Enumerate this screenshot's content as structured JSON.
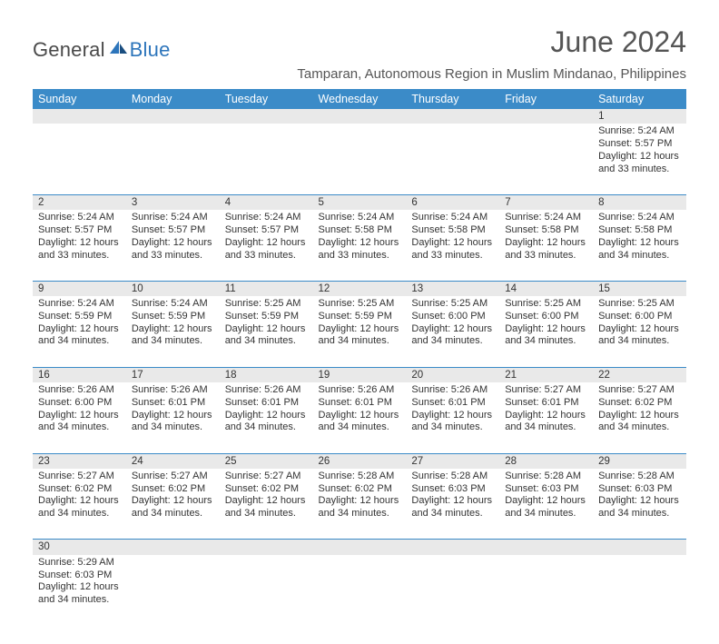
{
  "brand": {
    "part1": "General",
    "part2": "Blue"
  },
  "title": "June 2024",
  "location": "Tamparan, Autonomous Region in Muslim Mindanao, Philippines",
  "colors": {
    "header_bg": "#3b8bc8",
    "header_text": "#ffffff",
    "daynum_bg": "#e9e9e9",
    "row_divider": "#3b8bc8",
    "body_text": "#333333",
    "title_text": "#555555",
    "logo_dark": "#4a4a4a",
    "logo_blue": "#2d75bb"
  },
  "typography": {
    "title_fontsize": 32,
    "location_fontsize": 15,
    "weekday_fontsize": 12.5,
    "cell_fontsize": 11
  },
  "weekdays": [
    "Sunday",
    "Monday",
    "Tuesday",
    "Wednesday",
    "Thursday",
    "Friday",
    "Saturday"
  ],
  "weeks": [
    {
      "nums": [
        "",
        "",
        "",
        "",
        "",
        "",
        "1"
      ],
      "cells": [
        null,
        null,
        null,
        null,
        null,
        null,
        {
          "sunrise": "Sunrise: 5:24 AM",
          "sunset": "Sunset: 5:57 PM",
          "day1": "Daylight: 12 hours",
          "day2": "and 33 minutes."
        }
      ]
    },
    {
      "nums": [
        "2",
        "3",
        "4",
        "5",
        "6",
        "7",
        "8"
      ],
      "cells": [
        {
          "sunrise": "Sunrise: 5:24 AM",
          "sunset": "Sunset: 5:57 PM",
          "day1": "Daylight: 12 hours",
          "day2": "and 33 minutes."
        },
        {
          "sunrise": "Sunrise: 5:24 AM",
          "sunset": "Sunset: 5:57 PM",
          "day1": "Daylight: 12 hours",
          "day2": "and 33 minutes."
        },
        {
          "sunrise": "Sunrise: 5:24 AM",
          "sunset": "Sunset: 5:57 PM",
          "day1": "Daylight: 12 hours",
          "day2": "and 33 minutes."
        },
        {
          "sunrise": "Sunrise: 5:24 AM",
          "sunset": "Sunset: 5:58 PM",
          "day1": "Daylight: 12 hours",
          "day2": "and 33 minutes."
        },
        {
          "sunrise": "Sunrise: 5:24 AM",
          "sunset": "Sunset: 5:58 PM",
          "day1": "Daylight: 12 hours",
          "day2": "and 33 minutes."
        },
        {
          "sunrise": "Sunrise: 5:24 AM",
          "sunset": "Sunset: 5:58 PM",
          "day1": "Daylight: 12 hours",
          "day2": "and 33 minutes."
        },
        {
          "sunrise": "Sunrise: 5:24 AM",
          "sunset": "Sunset: 5:58 PM",
          "day1": "Daylight: 12 hours",
          "day2": "and 34 minutes."
        }
      ]
    },
    {
      "nums": [
        "9",
        "10",
        "11",
        "12",
        "13",
        "14",
        "15"
      ],
      "cells": [
        {
          "sunrise": "Sunrise: 5:24 AM",
          "sunset": "Sunset: 5:59 PM",
          "day1": "Daylight: 12 hours",
          "day2": "and 34 minutes."
        },
        {
          "sunrise": "Sunrise: 5:24 AM",
          "sunset": "Sunset: 5:59 PM",
          "day1": "Daylight: 12 hours",
          "day2": "and 34 minutes."
        },
        {
          "sunrise": "Sunrise: 5:25 AM",
          "sunset": "Sunset: 5:59 PM",
          "day1": "Daylight: 12 hours",
          "day2": "and 34 minutes."
        },
        {
          "sunrise": "Sunrise: 5:25 AM",
          "sunset": "Sunset: 5:59 PM",
          "day1": "Daylight: 12 hours",
          "day2": "and 34 minutes."
        },
        {
          "sunrise": "Sunrise: 5:25 AM",
          "sunset": "Sunset: 6:00 PM",
          "day1": "Daylight: 12 hours",
          "day2": "and 34 minutes."
        },
        {
          "sunrise": "Sunrise: 5:25 AM",
          "sunset": "Sunset: 6:00 PM",
          "day1": "Daylight: 12 hours",
          "day2": "and 34 minutes."
        },
        {
          "sunrise": "Sunrise: 5:25 AM",
          "sunset": "Sunset: 6:00 PM",
          "day1": "Daylight: 12 hours",
          "day2": "and 34 minutes."
        }
      ]
    },
    {
      "nums": [
        "16",
        "17",
        "18",
        "19",
        "20",
        "21",
        "22"
      ],
      "cells": [
        {
          "sunrise": "Sunrise: 5:26 AM",
          "sunset": "Sunset: 6:00 PM",
          "day1": "Daylight: 12 hours",
          "day2": "and 34 minutes."
        },
        {
          "sunrise": "Sunrise: 5:26 AM",
          "sunset": "Sunset: 6:01 PM",
          "day1": "Daylight: 12 hours",
          "day2": "and 34 minutes."
        },
        {
          "sunrise": "Sunrise: 5:26 AM",
          "sunset": "Sunset: 6:01 PM",
          "day1": "Daylight: 12 hours",
          "day2": "and 34 minutes."
        },
        {
          "sunrise": "Sunrise: 5:26 AM",
          "sunset": "Sunset: 6:01 PM",
          "day1": "Daylight: 12 hours",
          "day2": "and 34 minutes."
        },
        {
          "sunrise": "Sunrise: 5:26 AM",
          "sunset": "Sunset: 6:01 PM",
          "day1": "Daylight: 12 hours",
          "day2": "and 34 minutes."
        },
        {
          "sunrise": "Sunrise: 5:27 AM",
          "sunset": "Sunset: 6:01 PM",
          "day1": "Daylight: 12 hours",
          "day2": "and 34 minutes."
        },
        {
          "sunrise": "Sunrise: 5:27 AM",
          "sunset": "Sunset: 6:02 PM",
          "day1": "Daylight: 12 hours",
          "day2": "and 34 minutes."
        }
      ]
    },
    {
      "nums": [
        "23",
        "24",
        "25",
        "26",
        "27",
        "28",
        "29"
      ],
      "cells": [
        {
          "sunrise": "Sunrise: 5:27 AM",
          "sunset": "Sunset: 6:02 PM",
          "day1": "Daylight: 12 hours",
          "day2": "and 34 minutes."
        },
        {
          "sunrise": "Sunrise: 5:27 AM",
          "sunset": "Sunset: 6:02 PM",
          "day1": "Daylight: 12 hours",
          "day2": "and 34 minutes."
        },
        {
          "sunrise": "Sunrise: 5:27 AM",
          "sunset": "Sunset: 6:02 PM",
          "day1": "Daylight: 12 hours",
          "day2": "and 34 minutes."
        },
        {
          "sunrise": "Sunrise: 5:28 AM",
          "sunset": "Sunset: 6:02 PM",
          "day1": "Daylight: 12 hours",
          "day2": "and 34 minutes."
        },
        {
          "sunrise": "Sunrise: 5:28 AM",
          "sunset": "Sunset: 6:03 PM",
          "day1": "Daylight: 12 hours",
          "day2": "and 34 minutes."
        },
        {
          "sunrise": "Sunrise: 5:28 AM",
          "sunset": "Sunset: 6:03 PM",
          "day1": "Daylight: 12 hours",
          "day2": "and 34 minutes."
        },
        {
          "sunrise": "Sunrise: 5:28 AM",
          "sunset": "Sunset: 6:03 PM",
          "day1": "Daylight: 12 hours",
          "day2": "and 34 minutes."
        }
      ]
    },
    {
      "nums": [
        "30",
        "",
        "",
        "",
        "",
        "",
        ""
      ],
      "cells": [
        {
          "sunrise": "Sunrise: 5:29 AM",
          "sunset": "Sunset: 6:03 PM",
          "day1": "Daylight: 12 hours",
          "day2": "and 34 minutes."
        },
        null,
        null,
        null,
        null,
        null,
        null
      ]
    }
  ]
}
